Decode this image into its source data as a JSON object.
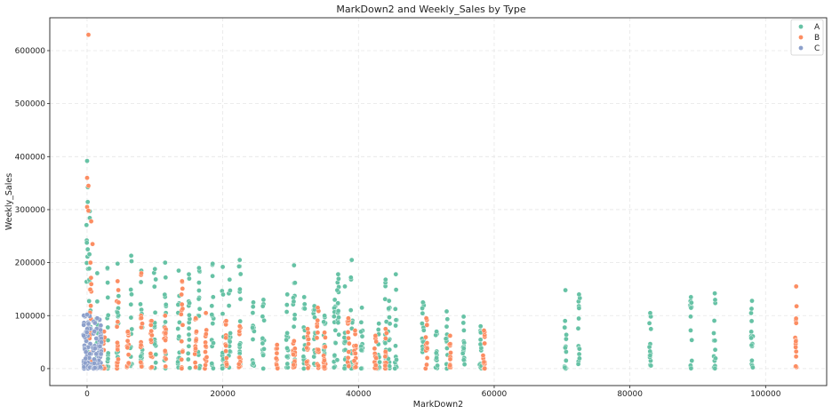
{
  "chart_data": {
    "type": "scatter",
    "title": "MarkDown2 and Weekly_Sales by Type",
    "xlabel": "MarkDown2",
    "ylabel": "Weekly_Sales",
    "xlim": [
      -5500,
      109000
    ],
    "ylim": [
      -32000,
      662000
    ],
    "xticks": [
      0,
      20000,
      40000,
      60000,
      80000,
      100000
    ],
    "yticks": [
      0,
      100000,
      200000,
      300000,
      400000,
      500000,
      600000
    ],
    "grid": true,
    "legend": {
      "placement": "top-right",
      "entries": [
        "A",
        "B",
        "C"
      ]
    },
    "colors": {
      "A": "#66c2a5",
      "B": "#fc8d62",
      "C": "#8da0cb"
    },
    "series": [
      {
        "name": "A",
        "columns": [
          [
            0,
            392000
          ],
          [
            400,
            297000
          ],
          [
            1500,
            180000
          ],
          [
            3000,
            190000
          ],
          [
            4500,
            198000
          ],
          [
            6500,
            213000
          ],
          [
            8000,
            185000
          ],
          [
            10000,
            188000
          ],
          [
            11500,
            200000
          ],
          [
            13500,
            185000
          ],
          [
            15000,
            178000
          ],
          [
            16500,
            190000
          ],
          [
            18500,
            198000
          ],
          [
            20000,
            192000
          ],
          [
            21000,
            168000
          ],
          [
            22500,
            205000
          ],
          [
            24500,
            125000
          ],
          [
            26000,
            130000
          ],
          [
            29500,
            140000
          ],
          [
            30500,
            195000
          ],
          [
            32000,
            135000
          ],
          [
            33500,
            118000
          ],
          [
            35000,
            100000
          ],
          [
            36500,
            130000
          ],
          [
            37000,
            178000
          ],
          [
            38000,
            155000
          ],
          [
            39000,
            205000
          ],
          [
            40500,
            115000
          ],
          [
            43000,
            85000
          ],
          [
            44000,
            168000
          ],
          [
            44500,
            128000
          ],
          [
            45500,
            178000
          ],
          [
            49500,
            125000
          ],
          [
            51500,
            70000
          ],
          [
            53000,
            108000
          ],
          [
            55500,
            98000
          ],
          [
            58000,
            80000
          ],
          [
            70500,
            148000
          ],
          [
            72500,
            140000
          ],
          [
            83000,
            105000
          ],
          [
            89000,
            135000
          ],
          [
            92500,
            142000
          ],
          [
            98000,
            128000
          ]
        ]
      },
      {
        "name": "B",
        "outliers": [
          [
            200,
            630000
          ],
          [
            0,
            360000
          ],
          [
            200,
            345000
          ],
          [
            0,
            305000
          ],
          [
            200,
            298000
          ],
          [
            600,
            278000
          ],
          [
            800,
            235000
          ]
        ],
        "columns": [
          [
            500,
            200000
          ],
          [
            2500,
            70000
          ],
          [
            4500,
            165000
          ],
          [
            6000,
            70000
          ],
          [
            8000,
            180000
          ],
          [
            9500,
            90000
          ],
          [
            11500,
            100000
          ],
          [
            14000,
            165000
          ],
          [
            16000,
            95000
          ],
          [
            17500,
            105000
          ],
          [
            20500,
            90000
          ],
          [
            22500,
            80000
          ],
          [
            28000,
            45000
          ],
          [
            30500,
            52000
          ],
          [
            32500,
            75000
          ],
          [
            34000,
            115000
          ],
          [
            35000,
            68000
          ],
          [
            38500,
            95000
          ],
          [
            39500,
            72000
          ],
          [
            42500,
            62000
          ],
          [
            44000,
            75000
          ],
          [
            50000,
            95000
          ],
          [
            53500,
            62000
          ],
          [
            58500,
            72000
          ],
          [
            104500,
            155000
          ]
        ]
      },
      {
        "name": "C",
        "columns": [
          [
            0,
            102000
          ],
          [
            1500,
            95000
          ]
        ]
      }
    ]
  }
}
